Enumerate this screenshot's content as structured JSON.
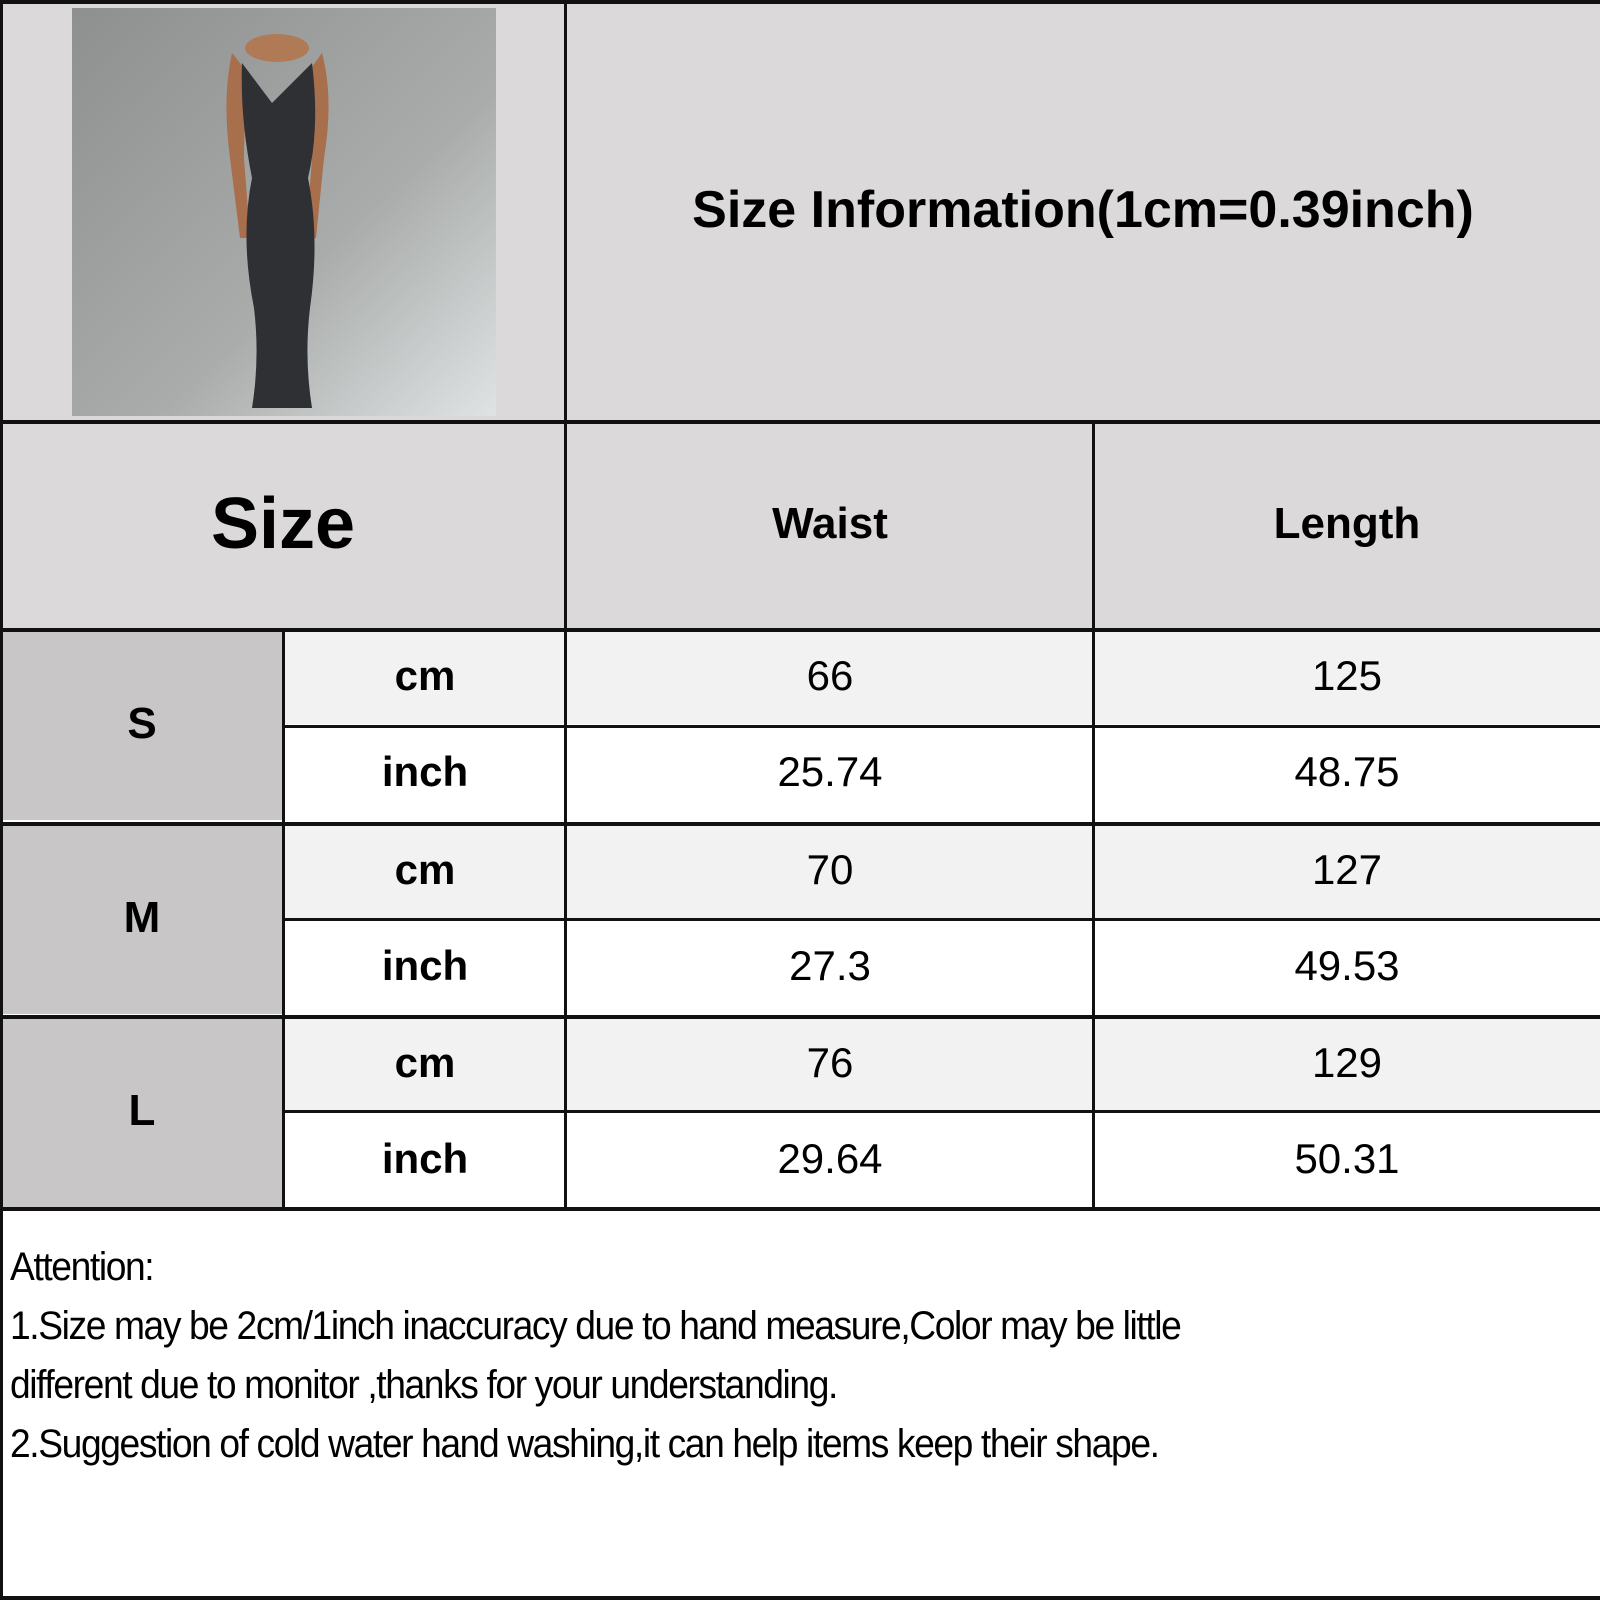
{
  "title": "Size Information(1cm=0.39inch)",
  "header": {
    "size": "Size",
    "columns": [
      "Waist",
      "Length"
    ]
  },
  "rows": [
    {
      "size": "S",
      "cm": {
        "unit": "cm",
        "waist": "66",
        "length": "125"
      },
      "inch": {
        "unit": "inch",
        "waist": "25.74",
        "length": "48.75"
      }
    },
    {
      "size": "M",
      "cm": {
        "unit": "cm",
        "waist": "70",
        "length": "127"
      },
      "inch": {
        "unit": "inch",
        "waist": "27.3",
        "length": "49.53"
      }
    },
    {
      "size": "L",
      "cm": {
        "unit": "cm",
        "waist": "76",
        "length": "129"
      },
      "inch": {
        "unit": "inch",
        "waist": "29.64",
        "length": "50.31"
      }
    }
  ],
  "notes": {
    "heading": "Attention:",
    "lines": [
      "1.Size may be 2cm/1inch inaccuracy due to hand measure,Color may be little",
      "different due to monitor ,thanks for your understanding.",
      "2.Suggestion of cold water hand washing,it can help items keep their shape."
    ]
  },
  "colors": {
    "header_bg": "#dbd9da",
    "size_bg": "#c9c6c7",
    "cm_row_bg": "#f2f2f2",
    "inch_row_bg": "#ffffff",
    "grid": "#111111"
  },
  "image": {
    "subject": "model in black maxi slip dress"
  }
}
